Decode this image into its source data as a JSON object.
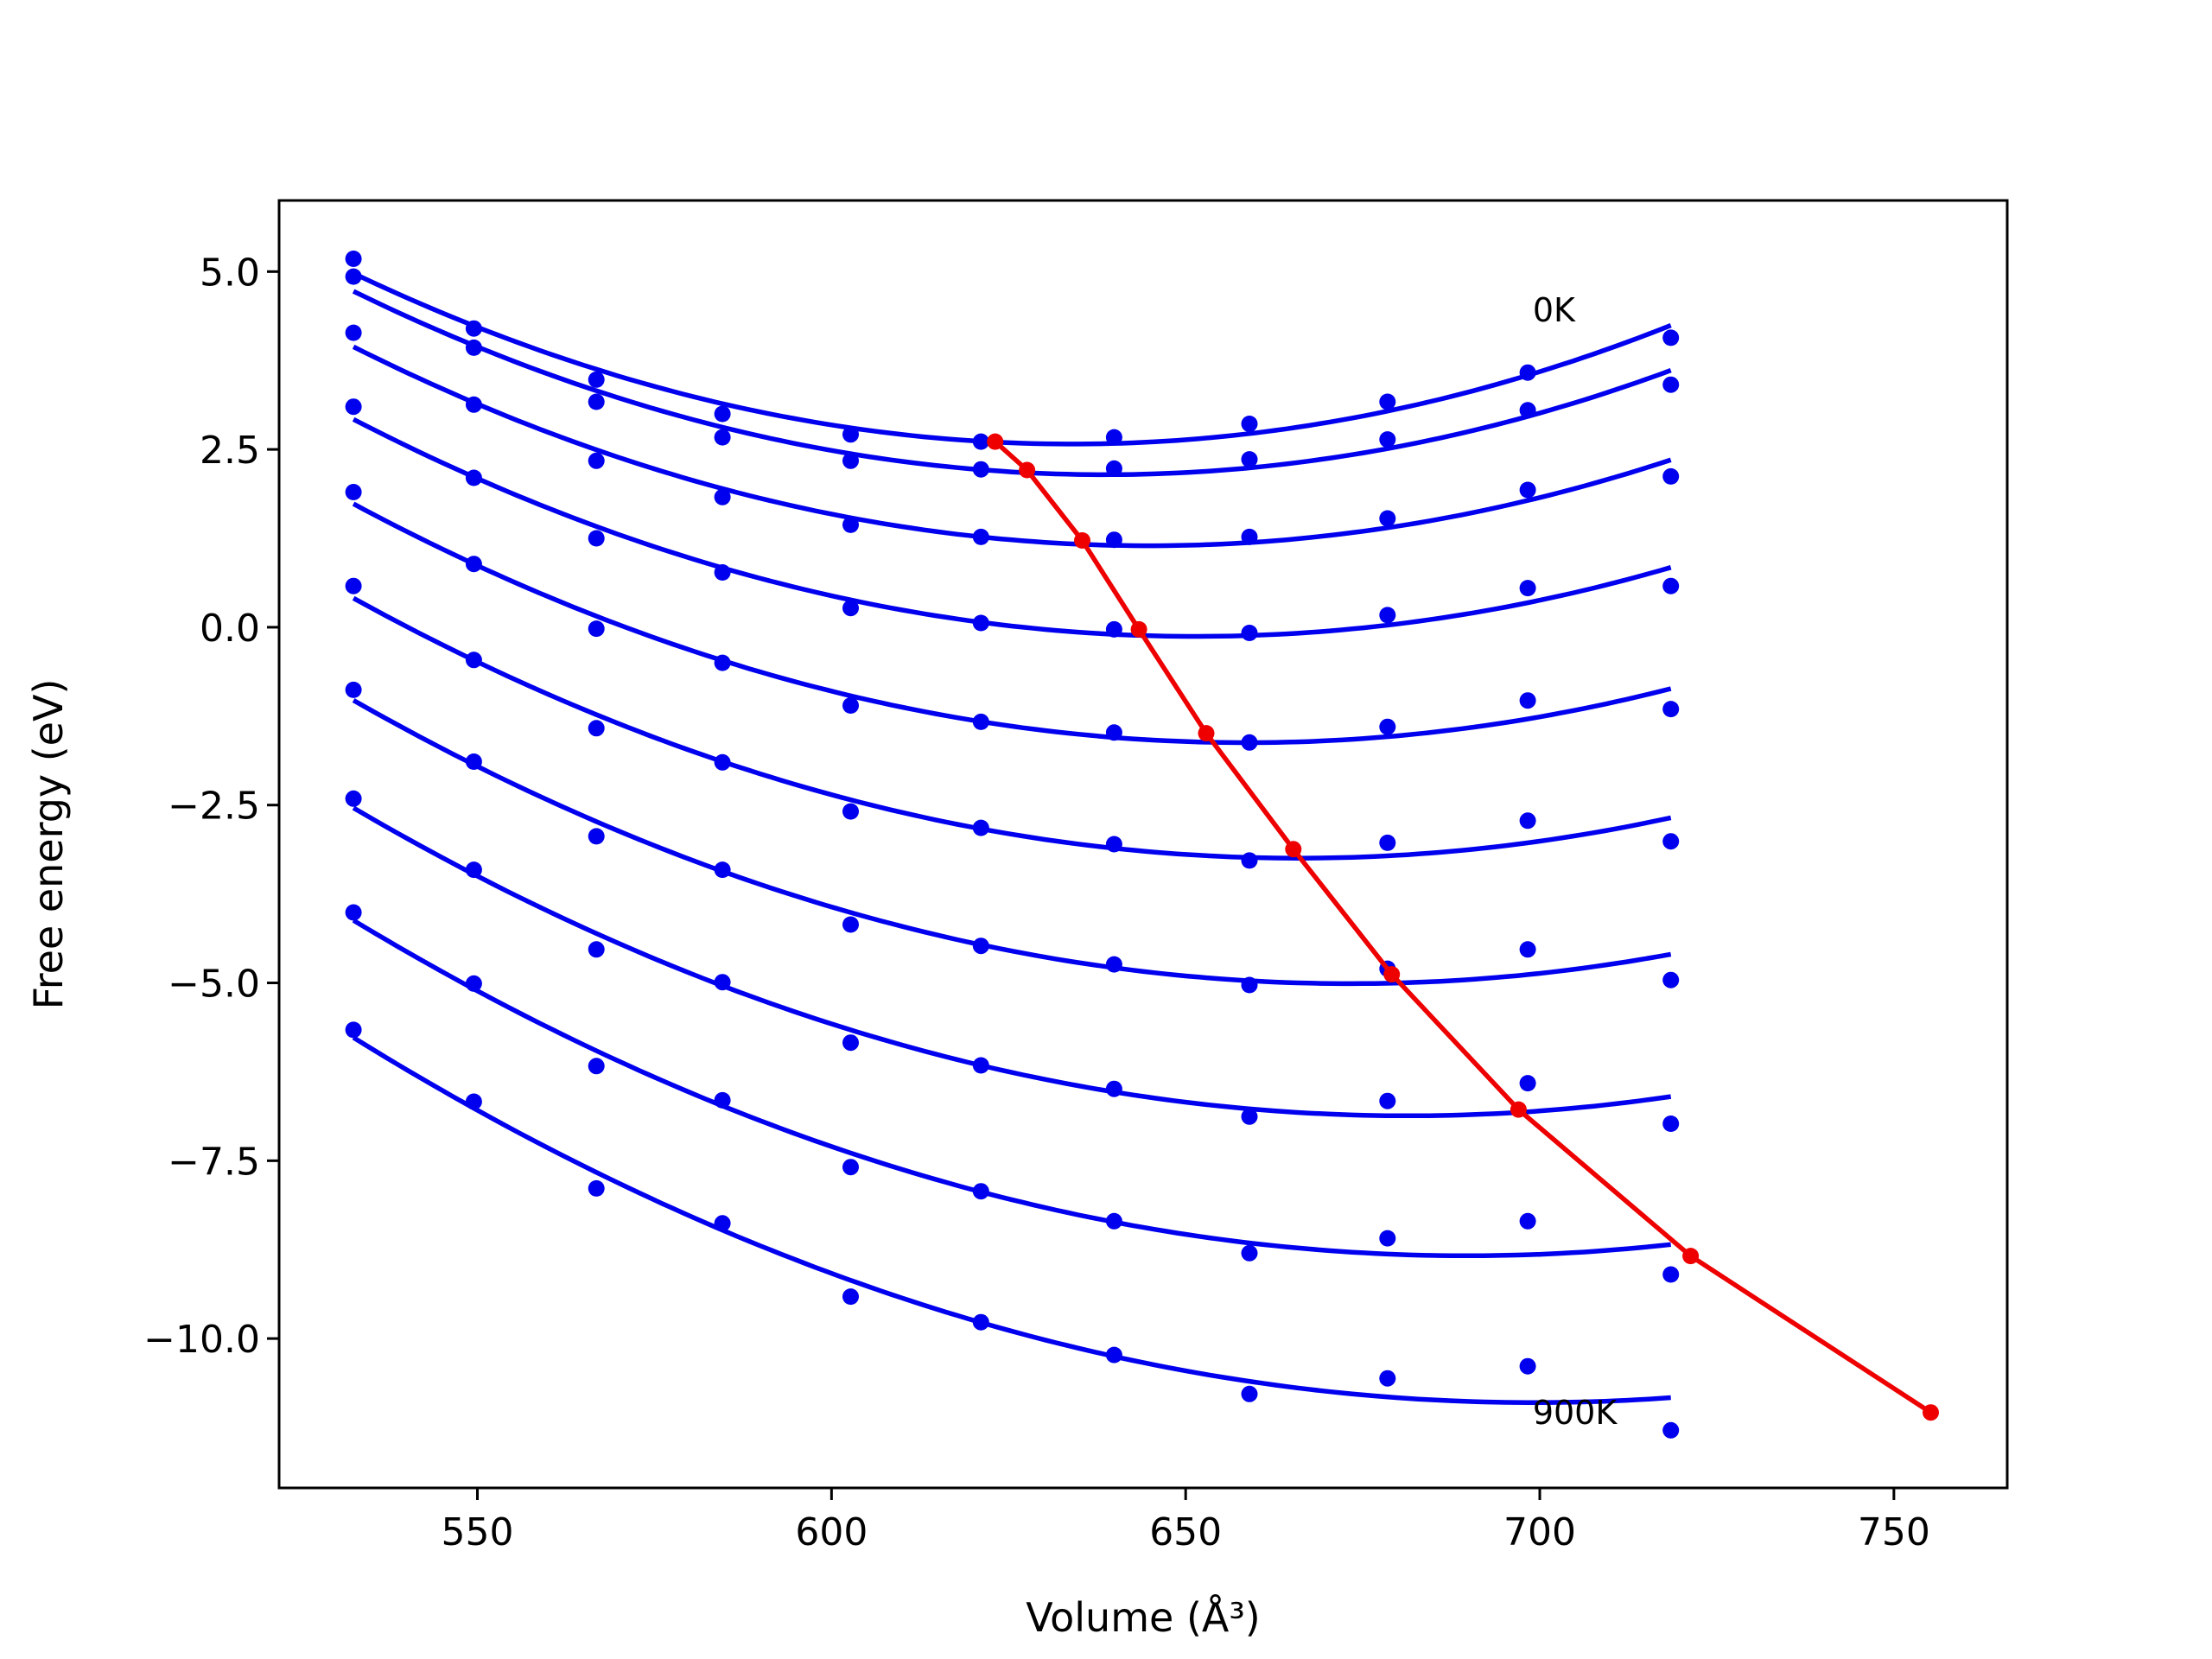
{
  "chart_data": {
    "type": "scatter",
    "xlabel": "Volume (Å³)",
    "ylabel": "Free energy (eV)",
    "xlim": [
      522,
      766
    ],
    "ylim": [
      -12.1,
      6.0
    ],
    "xticks": [
      550,
      600,
      650,
      700,
      750
    ],
    "yticks": [
      5.0,
      2.5,
      0.0,
      -2.5,
      -5.0,
      -7.5,
      -10.0
    ],
    "xtick_labels": [
      "550",
      "600",
      "650",
      "700",
      "750"
    ],
    "ytick_labels": [
      "5.0",
      "2.5",
      "0.0",
      "−2.5",
      "−5.0",
      "−7.5",
      "−10.0"
    ],
    "grid": false,
    "x": [
      532.5,
      549.5,
      566.8,
      584.6,
      602.7,
      621.1,
      639.9,
      659.0,
      678.5,
      698.3,
      718.5
    ],
    "series": [
      {
        "values": [
          5.18,
          4.2,
          3.48,
          3.0,
          2.71,
          2.61,
          2.67,
          2.86,
          3.17,
          3.58,
          4.07
        ],
        "color": "#0000ee"
      },
      {
        "values": [
          4.93,
          3.93,
          3.17,
          2.67,
          2.34,
          2.22,
          2.23,
          2.36,
          2.64,
          3.05,
          3.41
        ],
        "color": "#0000ee"
      },
      {
        "values": [
          4.14,
          3.13,
          2.34,
          1.83,
          1.44,
          1.27,
          1.23,
          1.27,
          1.53,
          1.93,
          2.12
        ],
        "color": "#0000ee"
      },
      {
        "values": [
          3.1,
          2.1,
          1.25,
          0.77,
          0.27,
          0.06,
          -0.03,
          -0.08,
          0.17,
          0.55,
          0.58
        ],
        "color": "#0000ee"
      },
      {
        "values": [
          1.9,
          0.89,
          -0.02,
          -0.5,
          -1.1,
          -1.33,
          -1.48,
          -1.62,
          -1.4,
          -1.03,
          -1.15
        ],
        "color": "#0000ee"
      },
      {
        "values": [
          0.58,
          -0.46,
          -1.42,
          -1.9,
          -2.59,
          -2.82,
          -3.05,
          -3.28,
          -3.03,
          -2.72,
          -3.01
        ],
        "color": "#0000ee"
      },
      {
        "values": [
          -0.88,
          -1.89,
          -2.94,
          -3.41,
          -4.18,
          -4.48,
          -4.74,
          -5.03,
          -4.8,
          -4.53,
          -4.96
        ],
        "color": "#0000ee"
      },
      {
        "values": [
          -2.41,
          -3.41,
          -4.53,
          -4.99,
          -5.84,
          -6.16,
          -6.49,
          -6.88,
          -6.66,
          -6.41,
          -6.98
        ],
        "color": "#0000ee"
      },
      {
        "values": [
          -4.01,
          -5.01,
          -6.17,
          -6.65,
          -7.59,
          -7.93,
          -8.35,
          -8.8,
          -8.59,
          -8.35,
          -9.1
        ],
        "color": "#0000ee"
      },
      {
        "values": [
          -5.66,
          -6.67,
          -7.89,
          -8.38,
          -9.41,
          -9.77,
          -10.23,
          -10.78,
          -10.56,
          -10.39,
          -11.29
        ],
        "color": "#0000ee"
      }
    ],
    "minima_line": {
      "color": "#ee0000",
      "x": [
        623.1,
        627.6,
        635.4,
        643.4,
        652.9,
        665.2,
        679.1,
        697.0,
        721.3,
        755.2
      ],
      "y": [
        2.61,
        2.21,
        1.22,
        -0.03,
        -1.49,
        -3.12,
        -4.88,
        -6.78,
        -8.84,
        -11.04
      ]
    },
    "annotations": [
      {
        "text": "0K",
        "x": 699,
        "y": 4.3
      },
      {
        "text": "900K",
        "x": 699,
        "y": -11.2
      }
    ]
  }
}
